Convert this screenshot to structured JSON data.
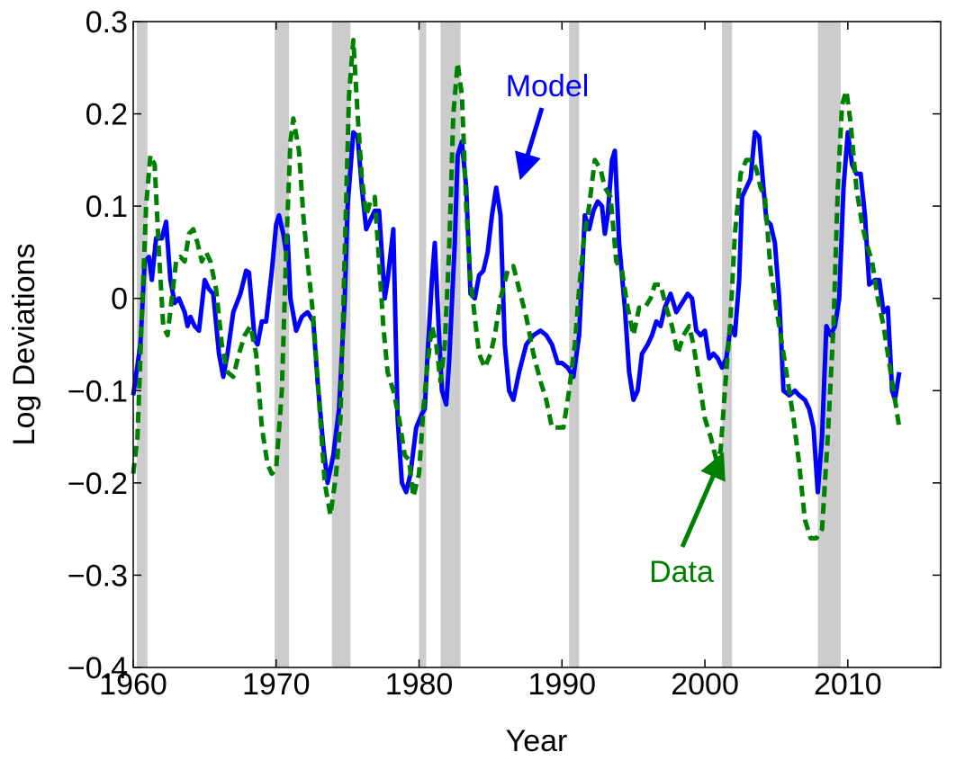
{
  "chart_data": {
    "type": "line",
    "xlabel": "Year",
    "ylabel": "Log Deviations",
    "xlim": [
      1960,
      2016.5
    ],
    "ylim": [
      -0.4,
      0.3
    ],
    "xticks": [
      1960,
      1970,
      1980,
      1990,
      2000,
      2010
    ],
    "yticks": [
      {
        "value": -0.4,
        "label": "−0.4"
      },
      {
        "value": -0.3,
        "label": "−0.3"
      },
      {
        "value": -0.2,
        "label": "−0.2"
      },
      {
        "value": -0.1,
        "label": "−0.1"
      },
      0,
      0.1,
      0.2,
      0.3
    ],
    "recession_bands": [
      [
        1960.25,
        1961.0
      ],
      [
        1969.9,
        1970.9
      ],
      [
        1973.9,
        1975.2
      ],
      [
        1980.0,
        1980.5
      ],
      [
        1981.5,
        1982.9
      ],
      [
        1990.5,
        1991.2
      ],
      [
        2001.2,
        2001.9
      ],
      [
        2007.9,
        2009.5
      ]
    ],
    "band_color": "#cccccc",
    "series": [
      {
        "name": "Model",
        "color": "#0000ff",
        "dashed": false,
        "x": [
          1960.0,
          1960.5,
          1960.8,
          1961.1,
          1961.3,
          1961.6,
          1962.0,
          1962.3,
          1962.6,
          1962.9,
          1963.2,
          1963.6,
          1963.8,
          1964.0,
          1964.3,
          1964.6,
          1965.0,
          1965.3,
          1965.6,
          1966.0,
          1966.3,
          1966.6,
          1967.0,
          1967.5,
          1967.9,
          1968.1,
          1968.5,
          1968.7,
          1969.0,
          1969.3,
          1969.7,
          1970.0,
          1970.2,
          1970.5,
          1970.7,
          1970.8,
          1971.0,
          1971.4,
          1971.8,
          1972.2,
          1972.6,
          1972.9,
          1973.3,
          1973.6,
          1974.0,
          1974.4,
          1974.8,
          1975.0,
          1975.4,
          1975.7,
          1976.0,
          1976.3,
          1976.6,
          1976.9,
          1977.2,
          1977.6,
          1977.8,
          1978.2,
          1978.5,
          1978.8,
          1979.1,
          1979.4,
          1979.8,
          1980.2,
          1980.4,
          1980.6,
          1980.9,
          1981.1,
          1981.4,
          1981.6,
          1981.9,
          1982.1,
          1982.5,
          1982.7,
          1983.0,
          1983.3,
          1983.6,
          1983.9,
          1984.2,
          1984.5,
          1984.8,
          1985.1,
          1985.4,
          1985.7,
          1986.0,
          1986.3,
          1986.6,
          1987.0,
          1987.5,
          1988.0,
          1988.5,
          1988.9,
          1989.3,
          1989.7,
          1990.0,
          1990.4,
          1990.8,
          1991.2,
          1991.6,
          1991.9,
          1992.2,
          1992.5,
          1992.8,
          1993.0,
          1993.2,
          1993.5,
          1993.7,
          1994.0,
          1994.4,
          1994.7,
          1995.0,
          1995.3,
          1995.6,
          1996.0,
          1996.3,
          1996.6,
          1996.9,
          1997.2,
          1997.6,
          1998.0,
          1998.4,
          1998.8,
          1999.1,
          1999.4,
          1999.7,
          2000.0,
          2000.3,
          2000.6,
          2000.9,
          2001.2,
          2001.5,
          2001.8,
          2002.1,
          2002.4,
          2002.6,
          2002.9,
          2003.2,
          2003.5,
          2003.8,
          2004.1,
          2004.3,
          2004.6,
          2004.9,
          2005.2,
          2005.5,
          2005.9,
          2006.3,
          2006.6,
          2007.0,
          2007.3,
          2007.6,
          2007.9,
          2008.2,
          2008.5,
          2008.8,
          2009.1,
          2009.4,
          2009.7,
          2010.0,
          2010.3,
          2010.6,
          2010.9,
          2011.2,
          2011.5,
          2011.9,
          2012.2,
          2012.5,
          2012.8,
          2013.1,
          2013.3,
          2013.6
        ],
        "values": [
          -0.105,
          -0.05,
          0.04,
          0.045,
          0.02,
          0.065,
          0.065,
          0.083,
          0.02,
          -0.005,
          0.0,
          -0.015,
          -0.03,
          -0.02,
          -0.03,
          -0.035,
          0.02,
          0.01,
          0.005,
          -0.06,
          -0.085,
          -0.06,
          -0.015,
          0.005,
          0.03,
          0.028,
          -0.045,
          -0.05,
          -0.025,
          -0.025,
          0.03,
          0.08,
          0.09,
          0.07,
          0.05,
          0.068,
          0.0,
          -0.035,
          -0.02,
          -0.015,
          -0.025,
          -0.09,
          -0.16,
          -0.2,
          -0.17,
          -0.12,
          0.0,
          0.1,
          0.18,
          0.175,
          0.12,
          0.075,
          0.085,
          0.095,
          0.095,
          0.0,
          0.02,
          0.075,
          -0.13,
          -0.2,
          -0.21,
          -0.19,
          -0.14,
          -0.125,
          -0.12,
          -0.06,
          0.02,
          0.06,
          -0.04,
          -0.1,
          -0.115,
          -0.07,
          0.06,
          0.155,
          0.17,
          0.12,
          0.005,
          0.0,
          0.025,
          0.03,
          0.05,
          0.09,
          0.12,
          0.09,
          -0.05,
          -0.1,
          -0.11,
          -0.08,
          -0.05,
          -0.04,
          -0.035,
          -0.04,
          -0.05,
          -0.07,
          -0.07,
          -0.075,
          -0.085,
          -0.04,
          0.09,
          0.075,
          0.095,
          0.105,
          0.1,
          0.07,
          0.09,
          0.15,
          0.16,
          0.06,
          -0.01,
          -0.08,
          -0.11,
          -0.1,
          -0.06,
          -0.05,
          -0.04,
          -0.025,
          -0.03,
          -0.01,
          0.005,
          -0.015,
          -0.005,
          0.005,
          0.0,
          -0.035,
          -0.04,
          -0.035,
          -0.065,
          -0.06,
          -0.065,
          -0.075,
          -0.065,
          -0.03,
          -0.04,
          0.02,
          0.11,
          0.12,
          0.13,
          0.18,
          0.175,
          0.12,
          0.085,
          0.08,
          0.06,
          0.0,
          -0.1,
          -0.105,
          -0.1,
          -0.105,
          -0.11,
          -0.12,
          -0.14,
          -0.21,
          -0.15,
          -0.03,
          -0.04,
          -0.03,
          0.0,
          0.12,
          0.18,
          0.145,
          0.135,
          0.135,
          0.09,
          0.015,
          0.02,
          0.02,
          -0.015,
          -0.01,
          -0.1,
          -0.11,
          -0.08
        ]
      },
      {
        "name": "Data",
        "color": "#008000",
        "dashed": true,
        "x": [
          1960.0,
          1960.3,
          1960.6,
          1960.9,
          1961.2,
          1961.5,
          1961.8,
          1962.1,
          1962.4,
          1962.7,
          1963.0,
          1963.3,
          1963.6,
          1963.9,
          1964.2,
          1964.5,
          1964.8,
          1965.1,
          1965.4,
          1965.8,
          1966.2,
          1966.6,
          1967.0,
          1967.4,
          1967.8,
          1968.2,
          1968.6,
          1969.0,
          1969.4,
          1969.7,
          1970.0,
          1970.4,
          1970.7,
          1971.0,
          1971.2,
          1971.6,
          1971.9,
          1972.2,
          1972.6,
          1973.0,
          1973.4,
          1973.8,
          1974.2,
          1974.5,
          1974.8,
          1975.1,
          1975.4,
          1975.7,
          1976.0,
          1976.3,
          1976.6,
          1976.9,
          1977.2,
          1977.5,
          1977.8,
          1978.2,
          1978.6,
          1979.0,
          1979.3,
          1979.6,
          1980.0,
          1980.3,
          1980.6,
          1980.9,
          1981.2,
          1981.5,
          1981.8,
          1982.1,
          1982.4,
          1982.7,
          1983.0,
          1983.3,
          1983.6,
          1983.9,
          1984.2,
          1984.6,
          1985.0,
          1985.3,
          1985.7,
          1986.2,
          1986.6,
          1987.0,
          1987.5,
          1988.0,
          1988.5,
          1988.9,
          1989.3,
          1989.7,
          1990.1,
          1990.5,
          1990.9,
          1991.2,
          1991.5,
          1991.9,
          1992.3,
          1992.7,
          1993.0,
          1993.4,
          1993.8,
          1994.2,
          1994.6,
          1995.0,
          1995.4,
          1995.8,
          1996.2,
          1996.5,
          1996.9,
          1997.3,
          1997.7,
          1998.1,
          1998.5,
          1998.9,
          1999.2,
          1999.6,
          2000.0,
          2000.4,
          2000.8,
          2001.1,
          2001.4,
          2001.8,
          2002.1,
          2002.5,
          2002.9,
          2003.3,
          2003.6,
          2003.9,
          2004.2,
          2004.6,
          2005.0,
          2005.4,
          2005.8,
          2006.2,
          2006.6,
          2007.0,
          2007.4,
          2007.8,
          2008.2,
          2008.6,
          2009.0,
          2009.3,
          2009.6,
          2009.9,
          2010.2,
          2010.6,
          2011.0,
          2011.3,
          2011.7,
          2012.1,
          2012.5,
          2012.9,
          2013.3,
          2013.6
        ],
        "values": [
          -0.19,
          -0.15,
          -0.02,
          0.1,
          0.155,
          0.145,
          0.05,
          -0.03,
          -0.04,
          0.0,
          0.04,
          0.045,
          0.04,
          0.07,
          0.075,
          0.06,
          0.04,
          0.05,
          0.04,
          0.01,
          -0.05,
          -0.08,
          -0.085,
          -0.06,
          -0.04,
          -0.03,
          -0.06,
          -0.14,
          -0.18,
          -0.19,
          -0.185,
          -0.1,
          0.05,
          0.17,
          0.195,
          0.16,
          0.09,
          0.04,
          -0.02,
          -0.11,
          -0.2,
          -0.235,
          -0.19,
          -0.13,
          0.05,
          0.22,
          0.28,
          0.2,
          0.13,
          0.09,
          0.105,
          0.11,
          0.04,
          -0.03,
          -0.08,
          -0.1,
          -0.13,
          -0.17,
          -0.175,
          -0.215,
          -0.19,
          -0.12,
          -0.07,
          -0.03,
          -0.05,
          -0.09,
          -0.05,
          0.05,
          0.2,
          0.255,
          0.22,
          0.1,
          0.02,
          -0.02,
          -0.06,
          -0.075,
          -0.06,
          -0.04,
          0.0,
          0.03,
          0.035,
          0.01,
          -0.02,
          -0.06,
          -0.09,
          -0.11,
          -0.14,
          -0.14,
          -0.14,
          -0.1,
          -0.05,
          0.01,
          0.06,
          0.1,
          0.15,
          0.14,
          0.12,
          0.11,
          0.04,
          0.03,
          -0.01,
          -0.04,
          -0.01,
          -0.01,
          0.0,
          0.015,
          0.015,
          -0.01,
          -0.03,
          -0.06,
          -0.04,
          -0.03,
          -0.05,
          -0.09,
          -0.13,
          -0.15,
          -0.175,
          -0.165,
          -0.1,
          -0.02,
          0.07,
          0.135,
          0.15,
          0.15,
          0.14,
          0.12,
          0.11,
          0.03,
          -0.01,
          -0.05,
          -0.09,
          -0.13,
          -0.18,
          -0.24,
          -0.26,
          -0.26,
          -0.25,
          -0.15,
          -0.03,
          0.12,
          0.21,
          0.225,
          0.19,
          0.12,
          0.08,
          0.06,
          0.04,
          0.0,
          -0.03,
          -0.07,
          -0.11,
          -0.14
        ]
      }
    ]
  }
}
